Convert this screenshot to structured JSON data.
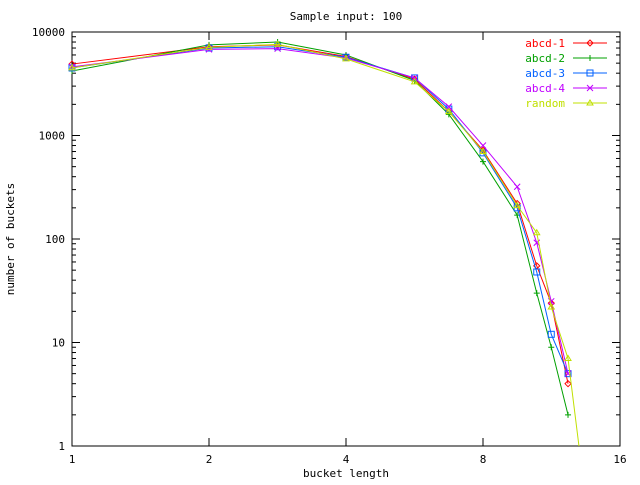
{
  "chart_data": {
    "type": "line",
    "title": "Sample input: 100",
    "xlabel": "bucket length",
    "ylabel": "number of buckets",
    "x_scale": "log2",
    "y_scale": "log10",
    "xlim": [
      1,
      16
    ],
    "ylim": [
      1,
      10000
    ],
    "x_ticks": [
      1,
      2,
      4,
      8,
      16
    ],
    "x_tick_labels": [
      "1",
      "2",
      "4",
      "8",
      "16"
    ],
    "y_ticks": [
      1,
      10,
      100,
      1000,
      10000
    ],
    "y_tick_labels": [
      "1",
      "10",
      "100",
      "1000",
      "10000"
    ],
    "grid": false,
    "legend_position": "top-right",
    "series": [
      {
        "name": "abcd-1",
        "color": "#ff0000",
        "marker": "diamond",
        "points": [
          [
            1,
            4900
          ],
          [
            2,
            7200
          ],
          [
            2.83,
            7500
          ],
          [
            4,
            5800
          ],
          [
            5.66,
            3500
          ],
          [
            6.73,
            1700
          ],
          [
            8,
            720
          ],
          [
            9.51,
            220
          ],
          [
            10.5,
            55
          ],
          [
            11.3,
            24
          ],
          [
            12.3,
            4
          ]
        ]
      },
      {
        "name": "abcd-2",
        "color": "#00a000",
        "marker": "plus",
        "points": [
          [
            1,
            4200
          ],
          [
            2,
            7500
          ],
          [
            2.83,
            8000
          ],
          [
            4,
            6000
          ],
          [
            5.66,
            3400
          ],
          [
            6.73,
            1600
          ],
          [
            8,
            560
          ],
          [
            9.51,
            170
          ],
          [
            10.5,
            30
          ],
          [
            11.3,
            9
          ],
          [
            12.3,
            2
          ]
        ]
      },
      {
        "name": "abcd-3",
        "color": "#0060ff",
        "marker": "square",
        "points": [
          [
            1,
            4500
          ],
          [
            2,
            7000
          ],
          [
            2.83,
            7200
          ],
          [
            4,
            5700
          ],
          [
            5.66,
            3600
          ],
          [
            6.73,
            1800
          ],
          [
            8,
            680
          ],
          [
            9.51,
            200
          ],
          [
            10.5,
            48
          ],
          [
            11.3,
            12
          ],
          [
            12.3,
            5
          ]
        ]
      },
      {
        "name": "abcd-4",
        "color": "#c000ff",
        "marker": "cross",
        "points": [
          [
            1,
            4600
          ],
          [
            2,
            6800
          ],
          [
            2.83,
            6900
          ],
          [
            4,
            5600
          ],
          [
            5.66,
            3600
          ],
          [
            6.73,
            1900
          ],
          [
            8,
            800
          ],
          [
            9.51,
            320
          ],
          [
            10.5,
            92
          ],
          [
            11.3,
            25
          ],
          [
            12.3,
            5
          ]
        ]
      },
      {
        "name": "random",
        "color": "#c0e000",
        "marker": "triangle",
        "points": [
          [
            1,
            4500
          ],
          [
            2,
            7100
          ],
          [
            2.83,
            7600
          ],
          [
            4,
            5500
          ],
          [
            5.66,
            3300
          ],
          [
            6.73,
            1700
          ],
          [
            8,
            700
          ],
          [
            9.51,
            210
          ],
          [
            10.5,
            115
          ],
          [
            11.3,
            22
          ],
          [
            12.3,
            7
          ],
          [
            13.0,
            1
          ]
        ]
      }
    ]
  }
}
